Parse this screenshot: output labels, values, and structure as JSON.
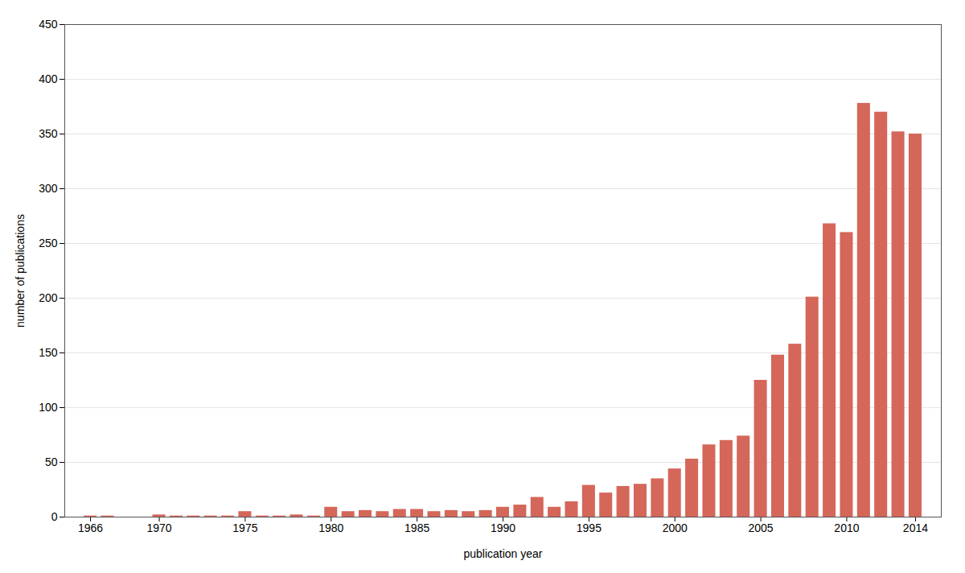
{
  "chart_data": {
    "type": "bar",
    "x": [
      1966,
      1967,
      1968,
      1969,
      1970,
      1971,
      1972,
      1973,
      1974,
      1975,
      1976,
      1977,
      1978,
      1979,
      1980,
      1981,
      1982,
      1983,
      1984,
      1985,
      1986,
      1987,
      1988,
      1989,
      1990,
      1991,
      1992,
      1993,
      1994,
      1995,
      1996,
      1997,
      1998,
      1999,
      2000,
      2001,
      2002,
      2003,
      2004,
      2005,
      2006,
      2007,
      2008,
      2009,
      2010,
      2011,
      2012,
      2013,
      2014
    ],
    "values": [
      1,
      1,
      0,
      0,
      2,
      1,
      1,
      1,
      1,
      5,
      1,
      1,
      2,
      1,
      9,
      5,
      6,
      5,
      7,
      7,
      5,
      6,
      5,
      6,
      9,
      11,
      18,
      9,
      14,
      29,
      22,
      28,
      30,
      35,
      44,
      53,
      66,
      70,
      74,
      125,
      148,
      158,
      201,
      268,
      260,
      378,
      370,
      352,
      350
    ],
    "color": "#d4675a",
    "xlabel": "publication year",
    "ylabel": "number of publications",
    "xlim": [
      1964.5,
      2015.5
    ],
    "xticks": [
      1966,
      1970,
      1975,
      1980,
      1985,
      1990,
      1995,
      2000,
      2005,
      2010,
      2014
    ],
    "ylim": [
      0,
      450
    ],
    "yticks": [
      0,
      50,
      100,
      150,
      200,
      250,
      300,
      350,
      400,
      450
    ],
    "grid": true
  }
}
